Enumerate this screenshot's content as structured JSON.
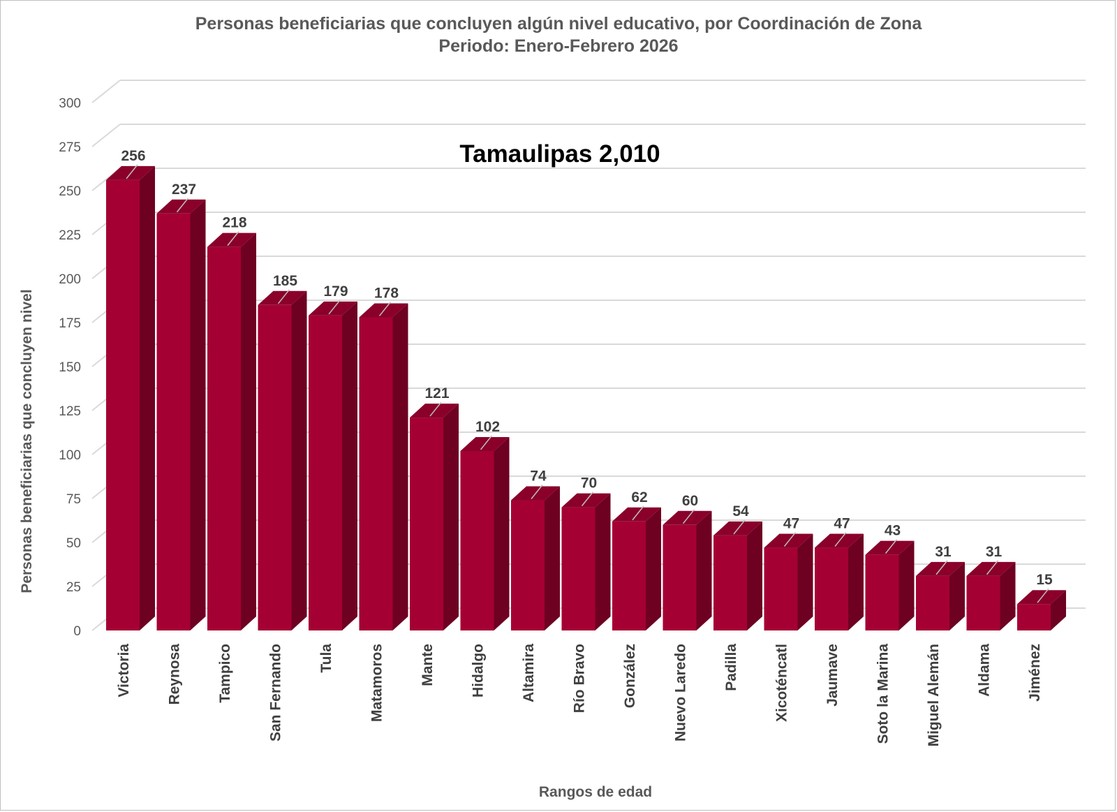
{
  "chart_data": {
    "type": "bar",
    "title": "Personas beneficiarias que concluyen algún nivel educativo, por Coordinación de Zona",
    "subtitle": "Periodo: Enero-Febrero 2026",
    "annotation": "Tamaulipas 2,010",
    "xlabel": "Rangos de edad",
    "ylabel": "Personas beneficiarias que concluyen nivel",
    "ylim": [
      0,
      300
    ],
    "yticks": [
      0,
      25,
      50,
      75,
      100,
      125,
      150,
      175,
      200,
      225,
      250,
      275,
      300
    ],
    "grid": true,
    "categories": [
      "Victoria",
      "Reynosa",
      "Tampico",
      "San Fernando",
      "Tula",
      "Matamoros",
      "Mante",
      "Hidalgo",
      "Altamira",
      "Río Bravo",
      "González",
      "Nuevo Laredo",
      "Padilla",
      "Xicoténcatl",
      "Jaumave",
      "Soto la Marina",
      "Miguel Alemán",
      "Aldama",
      "Jiménez"
    ],
    "values": [
      256,
      237,
      218,
      185,
      179,
      178,
      121,
      102,
      74,
      70,
      62,
      60,
      54,
      47,
      47,
      43,
      31,
      31,
      15
    ],
    "colors": {
      "front": "#a50034",
      "side": "#6e0022",
      "top": "#8a002b",
      "grid": "#d9d9d9"
    }
  }
}
